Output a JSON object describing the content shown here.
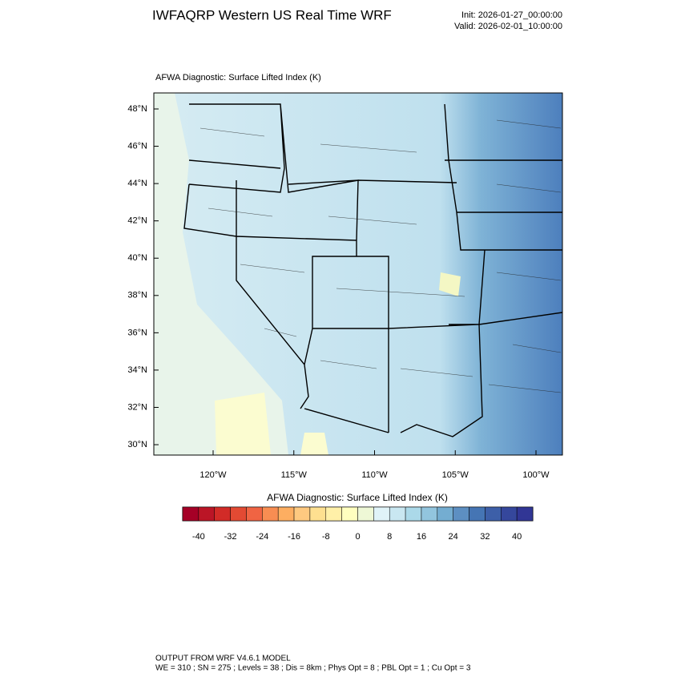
{
  "header": {
    "title": "IWFAQRP Western US Real Time WRF",
    "init": "Init: 2026-01-27_00:00:00",
    "valid": "Valid: 2026-02-01_10:00:00"
  },
  "map": {
    "subtitle": "AFWA Diagnostic: Surface Lifted Index   (K)",
    "lat_ticks": [
      {
        "value": 48,
        "label": "48°N"
      },
      {
        "value": 46,
        "label": "46°N"
      },
      {
        "value": 44,
        "label": "44°N"
      },
      {
        "value": 42,
        "label": "42°N"
      },
      {
        "value": 40,
        "label": "40°N"
      },
      {
        "value": 38,
        "label": "38°N"
      },
      {
        "value": 36,
        "label": "36°N"
      },
      {
        "value": 34,
        "label": "34°N"
      },
      {
        "value": 32,
        "label": "32°N"
      },
      {
        "value": 30,
        "label": "30°N"
      }
    ],
    "lon_ticks": [
      {
        "value": -120,
        "label": "120°W"
      },
      {
        "value": -115,
        "label": "115°W"
      },
      {
        "value": -110,
        "label": "110°W"
      },
      {
        "value": -105,
        "label": "105°W"
      },
      {
        "value": -100,
        "label": "100°W"
      }
    ]
  },
  "colorbar": {
    "title": "AFWA Diagnostic: Surface Lifted Index  (K)",
    "colors": [
      "#a50026",
      "#bb1526",
      "#d22b27",
      "#e34a33",
      "#f06443",
      "#f88d52",
      "#fdae61",
      "#fec980",
      "#fee090",
      "#fff0a8",
      "#ffffbf",
      "#eef8d6",
      "#e0f3f8",
      "#c9e7f1",
      "#abd9e9",
      "#92c5de",
      "#74add1",
      "#5d8fc2",
      "#4575b4",
      "#3d5fa8",
      "#35479c",
      "#313695"
    ],
    "lim": [
      -44,
      44
    ],
    "labels": [
      -40,
      -32,
      -24,
      -16,
      -8,
      0,
      8,
      16,
      24,
      32,
      40
    ]
  },
  "footer": {
    "line1": "OUTPUT FROM WRF V4.6.1 MODEL",
    "line2": "WE = 310 ; SN = 275 ; Levels = 38 ; Dis = 8km ; Phys Opt = 8 ; PBL Opt = 1 ; Cu Opt = 3"
  }
}
